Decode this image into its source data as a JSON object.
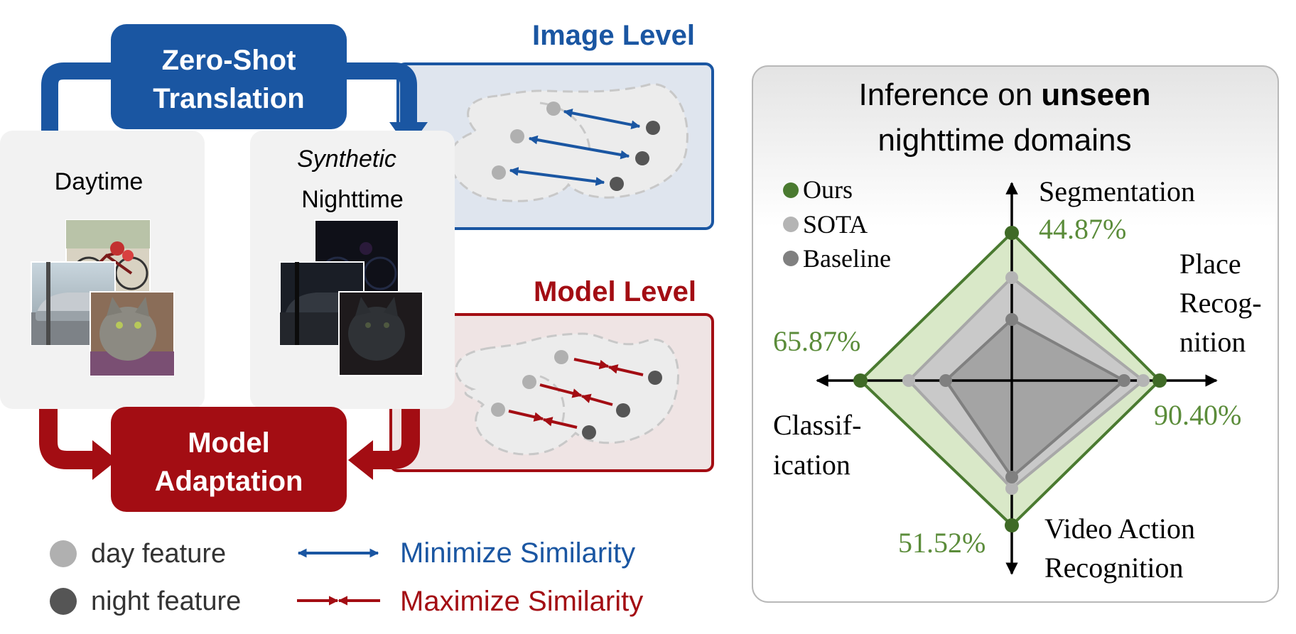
{
  "colors": {
    "blue": "#1a56a2",
    "red": "#a30d13",
    "green": "#4a7a30",
    "green_text": "#5b8c3a",
    "day_gray": "#b0b0b0",
    "night_gray": "#555555",
    "image_panel_fill": "#dfe5ee",
    "model_panel_fill": "#efe4e4",
    "card_fill": "#f2f2f2"
  },
  "pipeline": {
    "translation_label": [
      "Zero-Shot",
      "Translation"
    ],
    "adaptation_label": [
      "Model",
      "Adaptation"
    ],
    "daytime_label": "Daytime",
    "synthetic_label": "Synthetic",
    "nighttime_label": "Nighttime",
    "image_level_title": "Image Level",
    "model_level_title": "Model Level"
  },
  "legend": {
    "day_feature": "day feature",
    "night_feature": "night feature",
    "minimize": "Minimize Similarity",
    "maximize": "Maximize Similarity"
  },
  "radar": {
    "title_prefix": "Inference on ",
    "title_bold": "unseen",
    "title_line2": "nighttime domains",
    "legend": [
      {
        "name": "Ours",
        "color": "#4a7a30"
      },
      {
        "name": "SOTA",
        "color": "#b4b4b4"
      },
      {
        "name": "Baseline",
        "color": "#808080"
      }
    ],
    "axes": {
      "segmentation": "Segmentation",
      "place": [
        "Place",
        "Recog-",
        "nition"
      ],
      "video": [
        "Video Action",
        "Recognition"
      ],
      "classification": [
        "Classif-",
        "ication"
      ]
    },
    "values": {
      "segmentation": "44.87%",
      "place": "90.40%",
      "video": "51.52%",
      "classification": "65.87%"
    }
  }
}
